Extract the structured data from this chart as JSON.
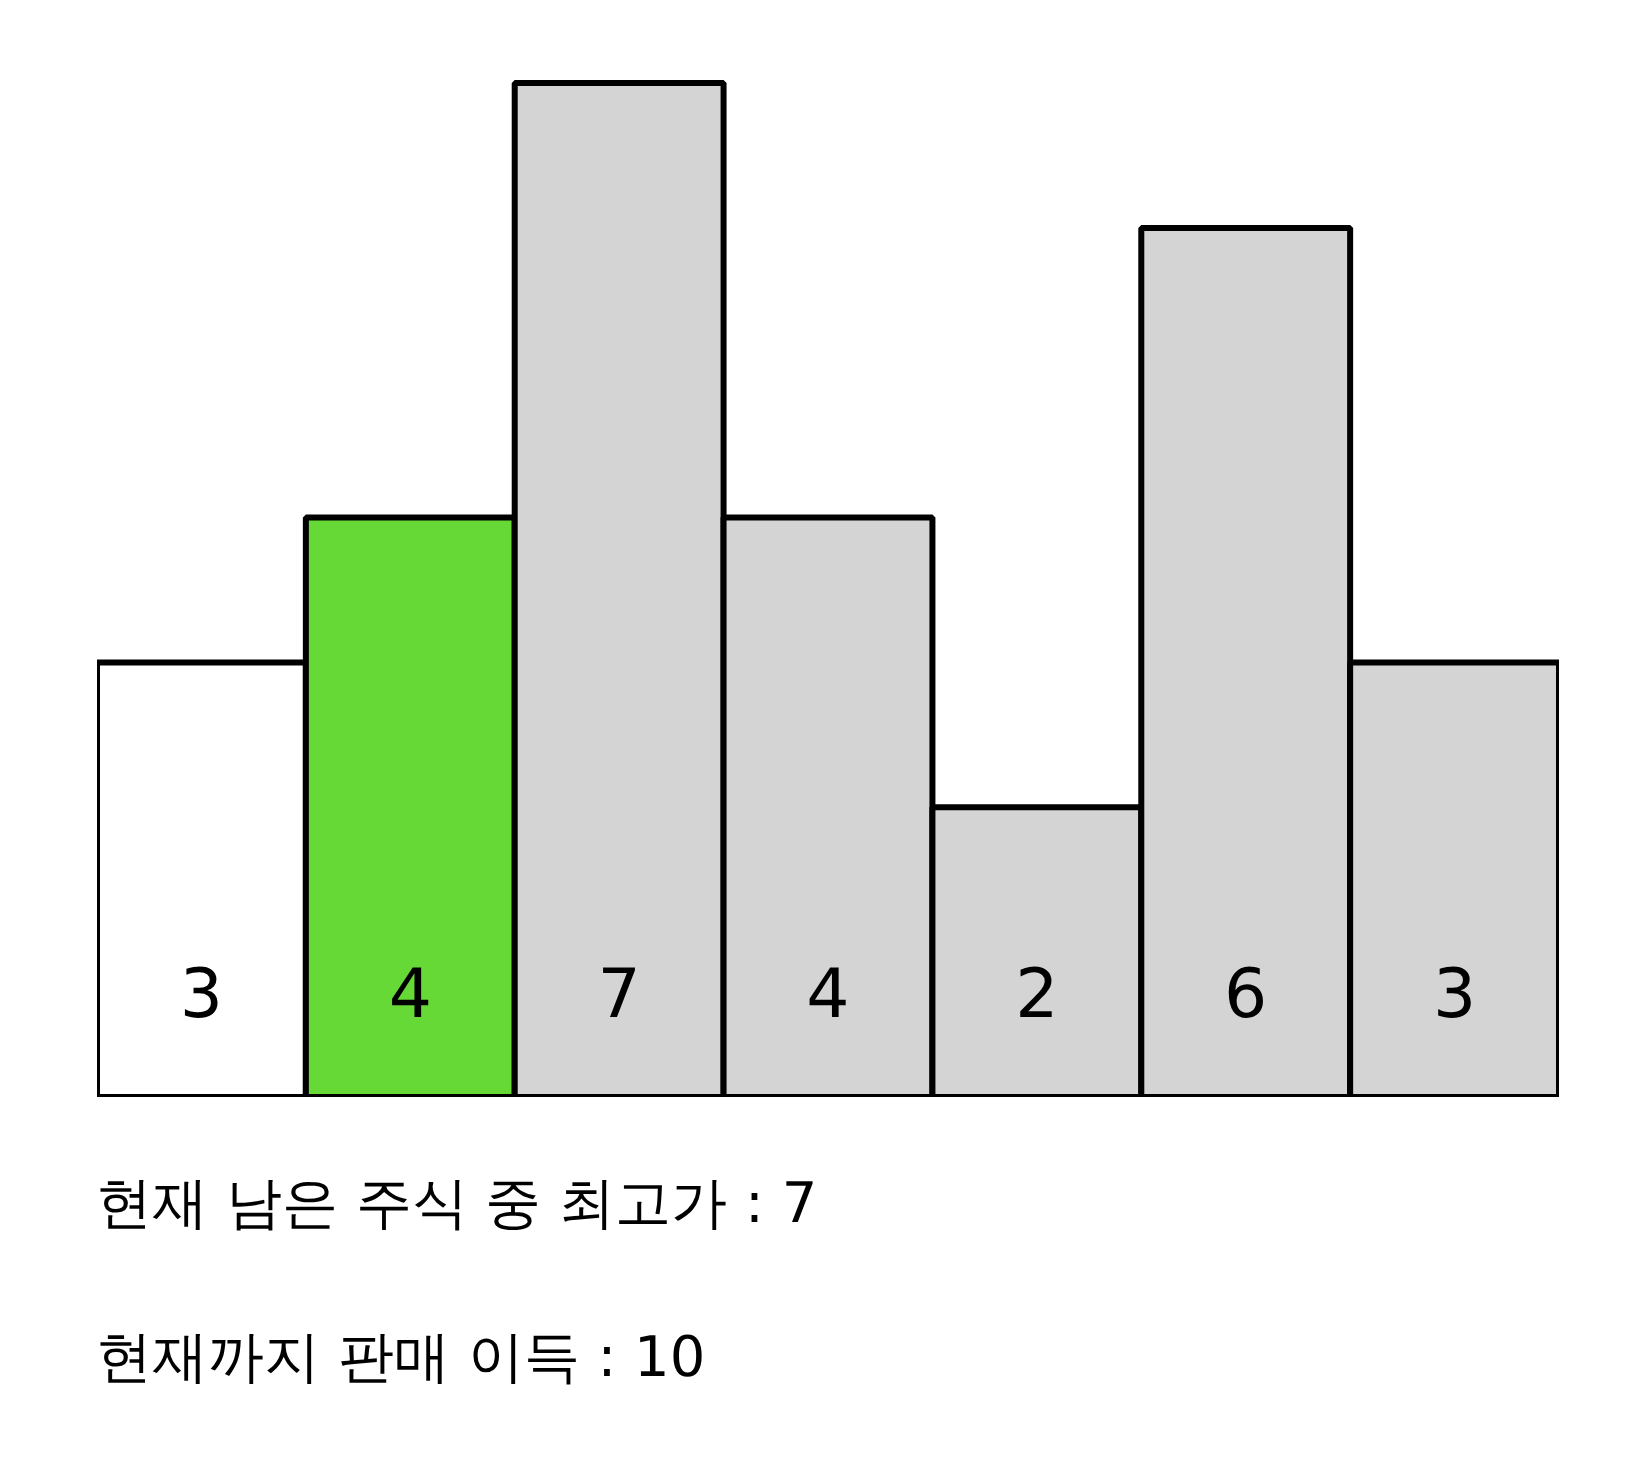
{
  "chart_data": {
    "type": "bar",
    "categories": [
      null,
      null,
      null,
      null,
      null,
      null,
      null
    ],
    "values": [
      3,
      4,
      7,
      4,
      2,
      6,
      3
    ],
    "colors": [
      "#ffffff",
      "#66d936",
      "#d4d4d4",
      "#d4d4d4",
      "#d4d4d4",
      "#d4d4d4",
      "#d4d4d4"
    ],
    "data_labels": true,
    "annotations": [
      "현재 남은 주식 중 최고가 : 7",
      "현재까지 판매 이득 : 10"
    ]
  }
}
